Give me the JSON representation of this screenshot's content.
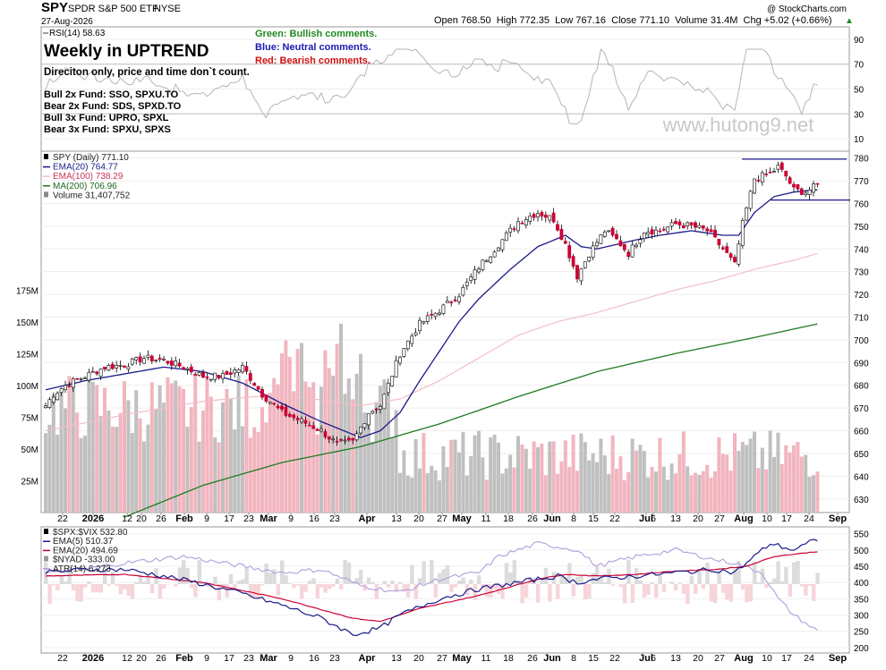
{
  "header": {
    "symbol": "SPY",
    "name": "SPDR S&P 500 ETF",
    "exchange": "NYSE",
    "date": "27-Aug-2026",
    "copyright": "@ StockCharts.com",
    "ohlc": "Open 768.50  High 772.35  Low 767.16  Close 771.10  Volume 31.4M  Chg +5.02 (+0.66%)",
    "ohlc_arrow": "▲"
  },
  "annotations": {
    "title": "Weekly in UPTREND",
    "subtitle": "Direciton only, price and time don`t count.",
    "funds": [
      "Bull 2x Fund: SSO, SPXU.TO",
      "Bear 2x Fund: SDS, SPXD.TO",
      "Bull 3x Fund: UPRO, SPXL",
      "Bear 3x Fund: SPXU, SPXS"
    ],
    "legend_green": "Green: Bullish comments.",
    "legend_blue": "Blue: Neutral comments.",
    "legend_red": "Red: Bearish comments.",
    "watermark": "www.hutong9.net"
  },
  "colors": {
    "up": "#ffffff",
    "down": "#cc0033",
    "ema20": "#1a1a8a",
    "ema100": "#f0c0c8",
    "ma200": "#1f7a1f",
    "vol_up": "#c0c0c0",
    "vol_down": "#f2b5bf",
    "green_text": "#1f8a1f",
    "blue_text": "#1a1ab0",
    "red_text": "#d01010",
    "vix": "#1a1a8a",
    "vix_ema20": "#cc0033",
    "nyad": "#c8c8c8",
    "atr": "#b39ddb"
  },
  "chart_data": [
    {
      "type": "line",
      "panel": "RSI",
      "legend": "RSI(14) 58.63",
      "y_ticks": [
        90,
        70,
        50,
        30,
        10
      ],
      "ylim": [
        0,
        100
      ]
    },
    {
      "type": "candlestick",
      "panel": "price",
      "legend": [
        "SPY (Daily) 771.10",
        "EMA(20) 764.77",
        "EMA(100) 738.29",
        "MA(200) 706.96",
        "Volume 31,407,752"
      ],
      "y_ticks": [
        780,
        770,
        760,
        750,
        740,
        730,
        720,
        710,
        700,
        690,
        680,
        670,
        660,
        650,
        640,
        630
      ],
      "ylim": [
        624,
        783
      ],
      "volume_ticks": [
        "175M",
        "150M",
        "125M",
        "100M",
        "75M",
        "50M",
        "25M"
      ],
      "volume_tick_values": [
        175,
        150,
        125,
        100,
        75,
        50,
        25
      ],
      "x_ticks": [
        "22",
        "2026",
        "12",
        "20",
        "26",
        "Feb",
        "9",
        "17",
        "23",
        "Mar",
        "9",
        "16",
        "23",
        "Apr",
        "13",
        "20",
        "27",
        "May",
        "11",
        "18",
        "26",
        "Jun",
        "8",
        "15",
        "22",
        "Jul",
        "6",
        "13",
        "20",
        "27",
        "Aug",
        "10",
        "17",
        "24",
        "Sep"
      ],
      "bold_ticks": [
        "2026",
        "Feb",
        "Mar",
        "Apr",
        "May",
        "Jun",
        "Jul",
        "Aug",
        "Sep"
      ],
      "trend_lines": [
        {
          "from": "Aug 3",
          "to": "Aug 31",
          "y": 779.5
        },
        {
          "from": "Aug 13",
          "to": "Aug 31",
          "y": 761.5
        }
      ],
      "close_anchors": [
        [
          0,
          671
        ],
        [
          2,
          676
        ],
        [
          5,
          680
        ],
        [
          10,
          684
        ],
        [
          15,
          688
        ],
        [
          20,
          689
        ],
        [
          25,
          692
        ],
        [
          30,
          691
        ],
        [
          35,
          688
        ],
        [
          40,
          684
        ],
        [
          45,
          684
        ],
        [
          50,
          688
        ],
        [
          55,
          676
        ],
        [
          60,
          668
        ],
        [
          64,
          665
        ],
        [
          70,
          660
        ],
        [
          74,
          654
        ],
        [
          78,
          655
        ],
        [
          82,
          668
        ],
        [
          85,
          671
        ],
        [
          90,
          694
        ],
        [
          95,
          707
        ],
        [
          100,
          713
        ],
        [
          105,
          720
        ],
        [
          110,
          732
        ],
        [
          115,
          742
        ],
        [
          120,
          752
        ],
        [
          125,
          756
        ],
        [
          129,
          753
        ],
        [
          132,
          742
        ],
        [
          135,
          728
        ],
        [
          138,
          738
        ],
        [
          142,
          748
        ],
        [
          145,
          744
        ],
        [
          148,
          738
        ],
        [
          152,
          748
        ],
        [
          156,
          748
        ],
        [
          160,
          751
        ],
        [
          164,
          750
        ],
        [
          168,
          748
        ],
        [
          172,
          740
        ],
        [
          175,
          733
        ],
        [
          177,
          751
        ],
        [
          180,
          771
        ],
        [
          184,
          773
        ],
        [
          186,
          776
        ],
        [
          188,
          772
        ],
        [
          190,
          766
        ],
        [
          193,
          765
        ],
        [
          196,
          768
        ]
      ],
      "ema20_anchors": [
        [
          0,
          678
        ],
        [
          10,
          682
        ],
        [
          20,
          685
        ],
        [
          30,
          688
        ],
        [
          40,
          686
        ],
        [
          50,
          681
        ],
        [
          60,
          672
        ],
        [
          70,
          664
        ],
        [
          80,
          657
        ],
        [
          85,
          660
        ],
        [
          90,
          668
        ],
        [
          95,
          682
        ],
        [
          100,
          695
        ],
        [
          105,
          708
        ],
        [
          110,
          718
        ],
        [
          118,
          731
        ],
        [
          125,
          741
        ],
        [
          132,
          746
        ],
        [
          136,
          741
        ],
        [
          140,
          740
        ],
        [
          145,
          742
        ],
        [
          150,
          744
        ],
        [
          156,
          746
        ],
        [
          164,
          748
        ],
        [
          172,
          746
        ],
        [
          176,
          746
        ],
        [
          180,
          756
        ],
        [
          185,
          763
        ],
        [
          190,
          765
        ],
        [
          196,
          766
        ]
      ],
      "ema100_anchors": [
        [
          0,
          660
        ],
        [
          20,
          667
        ],
        [
          40,
          673
        ],
        [
          60,
          676
        ],
        [
          80,
          671
        ],
        [
          90,
          674
        ],
        [
          100,
          682
        ],
        [
          110,
          692
        ],
        [
          120,
          702
        ],
        [
          130,
          708
        ],
        [
          140,
          712
        ],
        [
          150,
          717
        ],
        [
          160,
          722
        ],
        [
          170,
          726
        ],
        [
          180,
          731
        ],
        [
          190,
          735
        ],
        [
          196,
          738
        ]
      ],
      "ma200_anchors": [
        [
          20,
          622
        ],
        [
          40,
          636
        ],
        [
          60,
          646
        ],
        [
          80,
          653
        ],
        [
          100,
          663
        ],
        [
          120,
          675
        ],
        [
          140,
          686
        ],
        [
          160,
          694
        ],
        [
          180,
          701
        ],
        [
          196,
          707
        ]
      ]
    },
    {
      "type": "line",
      "panel": "indicators",
      "legend": [
        "$SPX:$VIX 532.80",
        "EMA(5) 510.37",
        "EMA(20) 494.69",
        "$NYAD -333.00",
        "ATR(14) 6.273"
      ],
      "y_ticks": [
        550,
        500,
        450,
        400,
        350,
        300,
        250,
        200
      ],
      "ylim": [
        183,
        571
      ],
      "vix_anchors": [
        [
          0,
          430
        ],
        [
          10,
          440
        ],
        [
          20,
          440
        ],
        [
          30,
          420
        ],
        [
          40,
          395
        ],
        [
          50,
          365
        ],
        [
          60,
          330
        ],
        [
          70,
          290
        ],
        [
          78,
          240
        ],
        [
          80,
          245
        ],
        [
          85,
          260
        ],
        [
          90,
          300
        ],
        [
          100,
          350
        ],
        [
          110,
          380
        ],
        [
          120,
          400
        ],
        [
          130,
          420
        ],
        [
          135,
          400
        ],
        [
          140,
          410
        ],
        [
          150,
          420
        ],
        [
          160,
          430
        ],
        [
          170,
          440
        ],
        [
          175,
          430
        ],
        [
          180,
          480
        ],
        [
          184,
          520
        ],
        [
          190,
          500
        ],
        [
          196,
          533
        ]
      ],
      "vix_ema20_anchors": [
        [
          0,
          420
        ],
        [
          20,
          425
        ],
        [
          40,
          400
        ],
        [
          60,
          350
        ],
        [
          78,
          290
        ],
        [
          85,
          280
        ],
        [
          95,
          320
        ],
        [
          110,
          360
        ],
        [
          125,
          410
        ],
        [
          132,
          425
        ],
        [
          140,
          420
        ],
        [
          150,
          425
        ],
        [
          160,
          435
        ],
        [
          170,
          440
        ],
        [
          178,
          450
        ],
        [
          185,
          480
        ],
        [
          196,
          495
        ]
      ],
      "atr_anchors": [
        [
          0,
          430
        ],
        [
          10,
          440
        ],
        [
          20,
          460
        ],
        [
          35,
          480
        ],
        [
          45,
          460
        ],
        [
          60,
          430
        ],
        [
          70,
          440
        ],
        [
          80,
          390
        ],
        [
          90,
          370
        ],
        [
          100,
          410
        ],
        [
          110,
          430
        ],
        [
          115,
          480
        ],
        [
          125,
          520
        ],
        [
          135,
          500
        ],
        [
          140,
          450
        ],
        [
          150,
          480
        ],
        [
          160,
          500
        ],
        [
          170,
          470
        ],
        [
          175,
          460
        ],
        [
          182,
          430
        ],
        [
          186,
          350
        ],
        [
          190,
          300
        ],
        [
          196,
          250
        ]
      ]
    }
  ]
}
